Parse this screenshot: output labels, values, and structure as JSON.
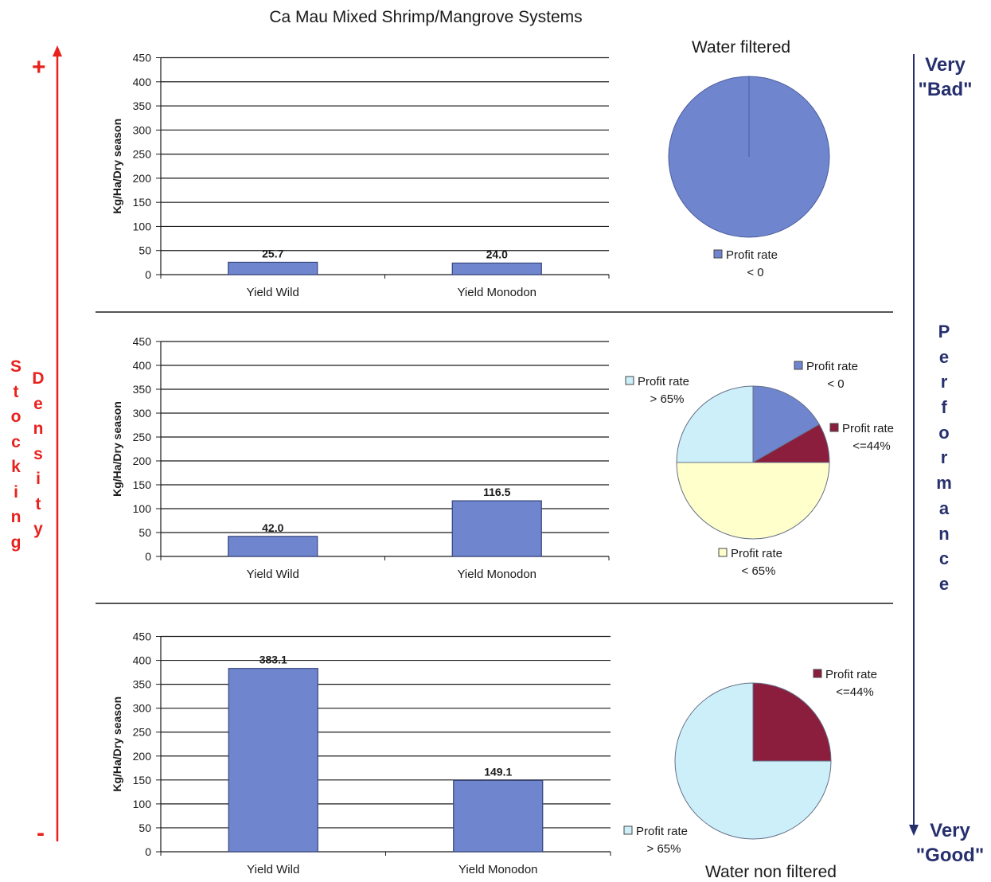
{
  "title": "Ca Mau Mixed Shrimp/Mangrove Systems",
  "left_axis": {
    "label_word1": "Stocking",
    "label_word2": "Density",
    "top_sign": "+",
    "bottom_sign": "-"
  },
  "right_axis": {
    "top_label": [
      "Very",
      "\"Bad\""
    ],
    "middle_label": "Performance",
    "bottom_label": [
      "Very",
      "\"Good\""
    ]
  },
  "colors": {
    "bar": "#6f86cf",
    "bar_edge": "#36437a",
    "pie_blue": "#6f86cf",
    "pie_maroon": "#8b1d3d",
    "pie_yellow": "#ffffcc",
    "pie_cyan": "#cceffa",
    "left_axis": "#e8211c",
    "right_axis": "#27306e"
  },
  "chart_data": [
    {
      "type": "bar",
      "categories": [
        "Yield Wild",
        "Yield Monodon"
      ],
      "values": [
        25.7,
        24.0
      ],
      "value_labels": [
        "25.7",
        "24.0"
      ],
      "ylabel": "Kg/Ha/Dry season",
      "ylim": [
        0,
        450
      ],
      "yticks": [
        0,
        50,
        100,
        150,
        200,
        250,
        300,
        350,
        400,
        450
      ],
      "grid": true
    },
    {
      "type": "pie",
      "title": "Water filtered",
      "slices": [
        {
          "label": "Profit rate",
          "sublabel": "< 0",
          "value": 100,
          "color": "#6f86cf"
        }
      ]
    },
    {
      "type": "bar",
      "categories": [
        "Yield Wild",
        "Yield Monodon"
      ],
      "values": [
        42.0,
        116.5
      ],
      "value_labels": [
        "42.0",
        "116.5"
      ],
      "ylabel": "Kg/Ha/Dry season",
      "ylim": [
        0,
        450
      ],
      "yticks": [
        0,
        50,
        100,
        150,
        200,
        250,
        300,
        350,
        400,
        450
      ],
      "grid": true
    },
    {
      "type": "pie",
      "slices": [
        {
          "label": "Profit rate",
          "sublabel": "< 0",
          "value": 16.7,
          "color": "#6f86cf"
        },
        {
          "label": "Profit rate",
          "sublabel": "<=44%",
          "value": 8.3,
          "color": "#8b1d3d"
        },
        {
          "label": "Profit rate",
          "sublabel": "< 65%",
          "value": 50,
          "color": "#ffffcc"
        },
        {
          "label": "Profit rate",
          "sublabel": "> 65%",
          "value": 25,
          "color": "#cceffa"
        }
      ]
    },
    {
      "type": "bar",
      "categories": [
        "Yield Wild",
        "Yield Monodon"
      ],
      "values": [
        383.1,
        149.1
      ],
      "value_labels": [
        "383.1",
        "149.1"
      ],
      "ylabel": "Kg/Ha/Dry season",
      "ylim": [
        0,
        450
      ],
      "yticks": [
        0,
        50,
        100,
        150,
        200,
        250,
        300,
        350,
        400,
        450
      ],
      "grid": true
    },
    {
      "type": "pie",
      "title": "Water non filtered",
      "slices": [
        {
          "label": "Profit rate",
          "sublabel": "<=44%",
          "value": 25,
          "color": "#8b1d3d"
        },
        {
          "label": "Profit rate",
          "sublabel": "> 65%",
          "value": 75,
          "color": "#cceffa"
        }
      ]
    }
  ]
}
